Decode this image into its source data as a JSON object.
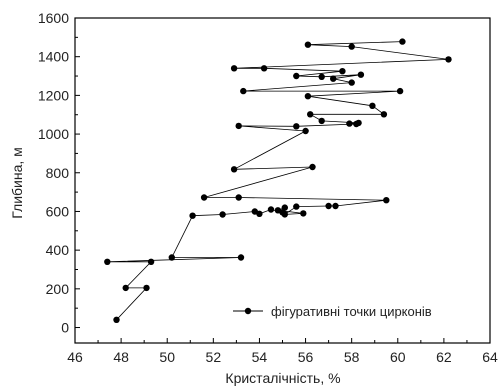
{
  "chart_data": {
    "type": "scatter",
    "xlabel": "Кристалічність, %",
    "ylabel": "Глибина, м",
    "xlim": [
      46,
      64
    ],
    "ylim": [
      -80,
      1600
    ],
    "xticks": [
      46,
      48,
      50,
      52,
      54,
      56,
      58,
      60,
      62,
      64
    ],
    "yticks": [
      0,
      200,
      400,
      600,
      800,
      1000,
      1200,
      1400,
      1600
    ],
    "grid": false,
    "legend_position": "bottom-right",
    "series": [
      {
        "name": "фігуративні точки цирконів",
        "color": "#000000",
        "marker": "circle",
        "connected": true,
        "points": [
          [
            47.8,
            40
          ],
          [
            49.1,
            205
          ],
          [
            48.2,
            205
          ],
          [
            49.3,
            340
          ],
          [
            47.4,
            340
          ],
          [
            53.2,
            362
          ],
          [
            50.2,
            362
          ],
          [
            51.1,
            578
          ],
          [
            52.4,
            584
          ],
          [
            53.8,
            600
          ],
          [
            54.0,
            588
          ],
          [
            54.5,
            610
          ],
          [
            55.0,
            595
          ],
          [
            55.1,
            620
          ],
          [
            54.8,
            606
          ],
          [
            55.9,
            590
          ],
          [
            55.1,
            585
          ],
          [
            55.6,
            625
          ],
          [
            57.0,
            628
          ],
          [
            57.3,
            628
          ],
          [
            59.5,
            658
          ],
          [
            53.1,
            672
          ],
          [
            51.6,
            672
          ],
          [
            56.3,
            830
          ],
          [
            52.9,
            818
          ],
          [
            56.0,
            1016
          ],
          [
            53.1,
            1042
          ],
          [
            55.6,
            1040
          ],
          [
            58.2,
            1052
          ],
          [
            57.9,
            1054
          ],
          [
            58.3,
            1058
          ],
          [
            56.7,
            1068
          ],
          [
            56.2,
            1102
          ],
          [
            59.4,
            1102
          ],
          [
            58.9,
            1146
          ],
          [
            56.1,
            1196
          ],
          [
            60.1,
            1222
          ],
          [
            53.3,
            1222
          ],
          [
            58.0,
            1266
          ],
          [
            57.2,
            1286
          ],
          [
            58.4,
            1307
          ],
          [
            56.7,
            1296
          ],
          [
            55.6,
            1300
          ],
          [
            57.6,
            1325
          ],
          [
            54.2,
            1340
          ],
          [
            52.9,
            1340
          ],
          [
            62.2,
            1386
          ],
          [
            58.0,
            1452
          ],
          [
            56.1,
            1462
          ],
          [
            60.2,
            1478
          ]
        ]
      }
    ]
  }
}
